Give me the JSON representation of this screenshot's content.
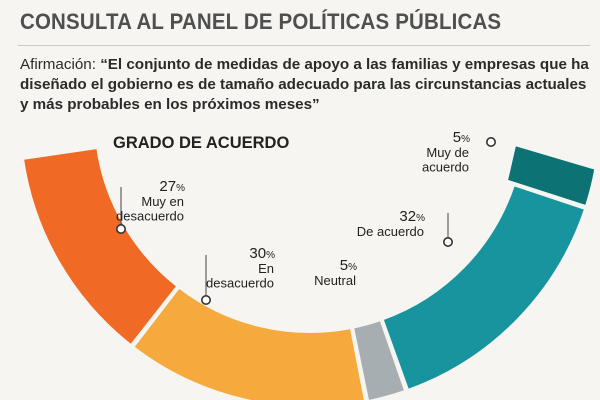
{
  "header": {
    "title": "CONSULTA AL PANEL DE POLÍTICAS PÚBLICAS",
    "statement_label": "Afirmación: ",
    "statement_text": "“El conjunto de medidas de apoyo a las familias y empresas que ha diseñado el gobierno es de tamaño adecuado para las circunstancias actuales y más probables en los próximos meses”"
  },
  "chart_data": {
    "type": "pie",
    "title": "GRADO DE ACUERDO",
    "variant": "half-donut",
    "unit": "%",
    "slices": [
      {
        "name": "Muy en desacuerdo",
        "value": 27,
        "color": "#f06a25",
        "label_lines": [
          "Muy en",
          "desacuerdo"
        ]
      },
      {
        "name": "En desacuerdo",
        "value": 30,
        "color": "#f6aa3e",
        "label_lines": [
          "En",
          "desacuerdo"
        ]
      },
      {
        "name": "Neutral",
        "value": 5,
        "color": "#a7aeb1",
        "label_lines": [
          "Neutral"
        ]
      },
      {
        "name": "De acuerdo",
        "value": 32,
        "color": "#17949d",
        "label_lines": [
          "De acuerdo"
        ]
      },
      {
        "name": "Muy de acuerdo",
        "value": 5,
        "color": "#0c7274",
        "label_lines": [
          "Muy de",
          "acuerdo"
        ]
      }
    ]
  }
}
